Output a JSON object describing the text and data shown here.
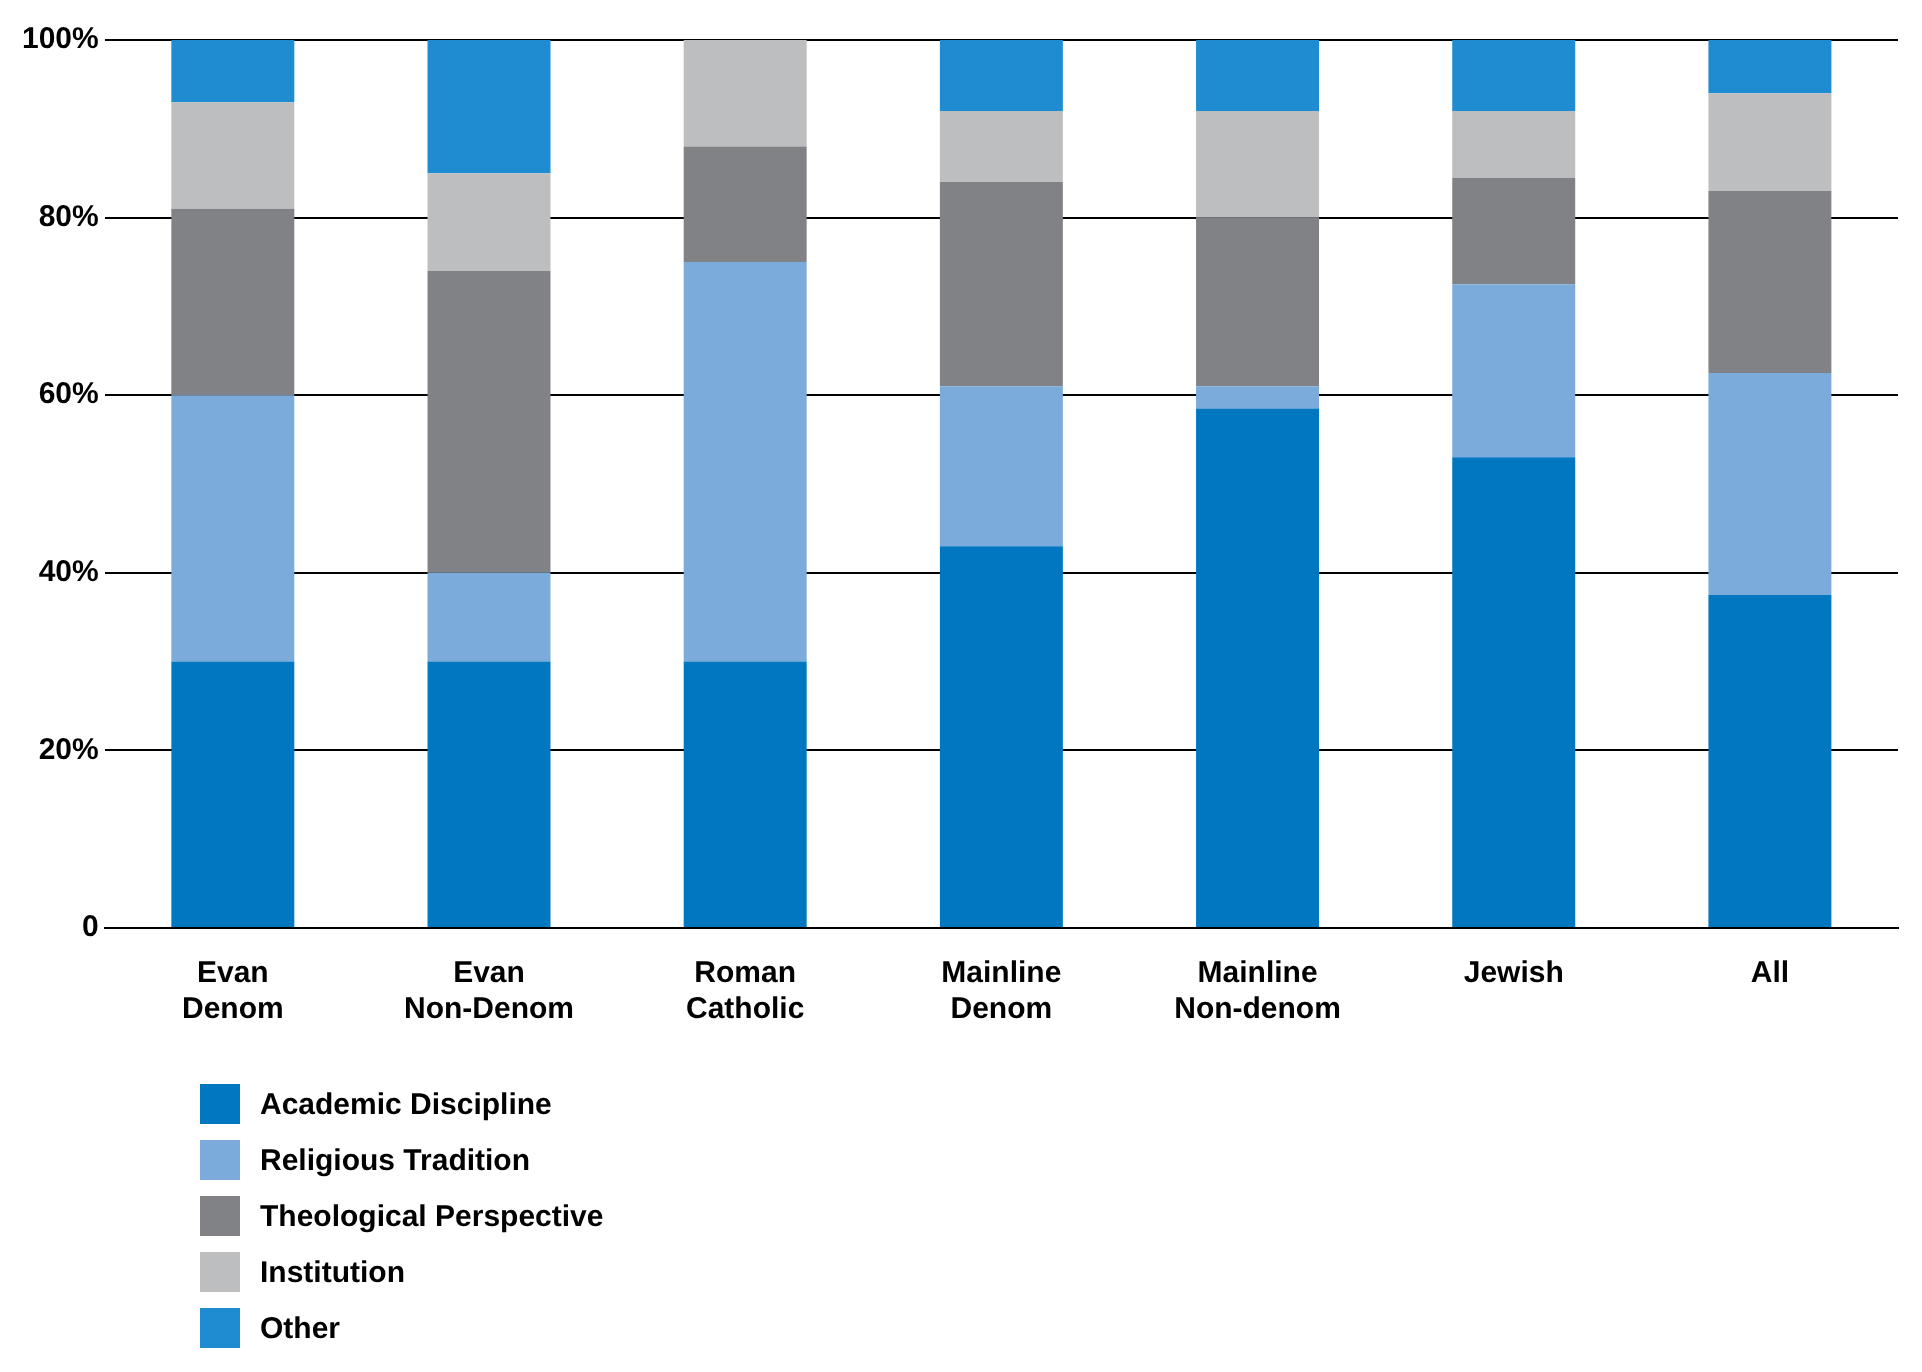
{
  "chart_data": {
    "type": "bar",
    "stacked": true,
    "categories": [
      "Evan Denom",
      "Evan Non-Denom",
      "Roman Catholic",
      "Mainline Denom",
      "Mainline Non-denom",
      "Jewish",
      "All"
    ],
    "series": [
      {
        "name": "Academic Discipline",
        "color": "#0077c0",
        "values": [
          30,
          30,
          30,
          43,
          58.5,
          53,
          37.5
        ]
      },
      {
        "name": "Religious Tradition",
        "color": "#7aabdb",
        "values": [
          30,
          10,
          45,
          18,
          2.5,
          19.5,
          25
        ]
      },
      {
        "name": "Theological Perspective",
        "color": "#808285",
        "values": [
          21,
          34,
          13,
          23,
          19,
          12,
          20.5
        ]
      },
      {
        "name": "Institution",
        "color": "#bcbec0",
        "values": [
          12,
          11,
          12,
          8,
          12,
          7.5,
          11
        ]
      },
      {
        "name": "Other",
        "color": "#1f8bd1",
        "values": [
          7,
          15,
          0,
          8,
          8,
          8,
          6
        ]
      }
    ],
    "ylim": [
      0,
      100
    ],
    "yticks": [
      {
        "value": 0,
        "label": "0"
      },
      {
        "value": 20,
        "label": "20%"
      },
      {
        "value": 40,
        "label": "40%"
      },
      {
        "value": 60,
        "label": "60%"
      },
      {
        "value": 80,
        "label": "80%"
      },
      {
        "value": 100,
        "label": "100%"
      }
    ],
    "grid": "y",
    "legend": "bottom left"
  }
}
